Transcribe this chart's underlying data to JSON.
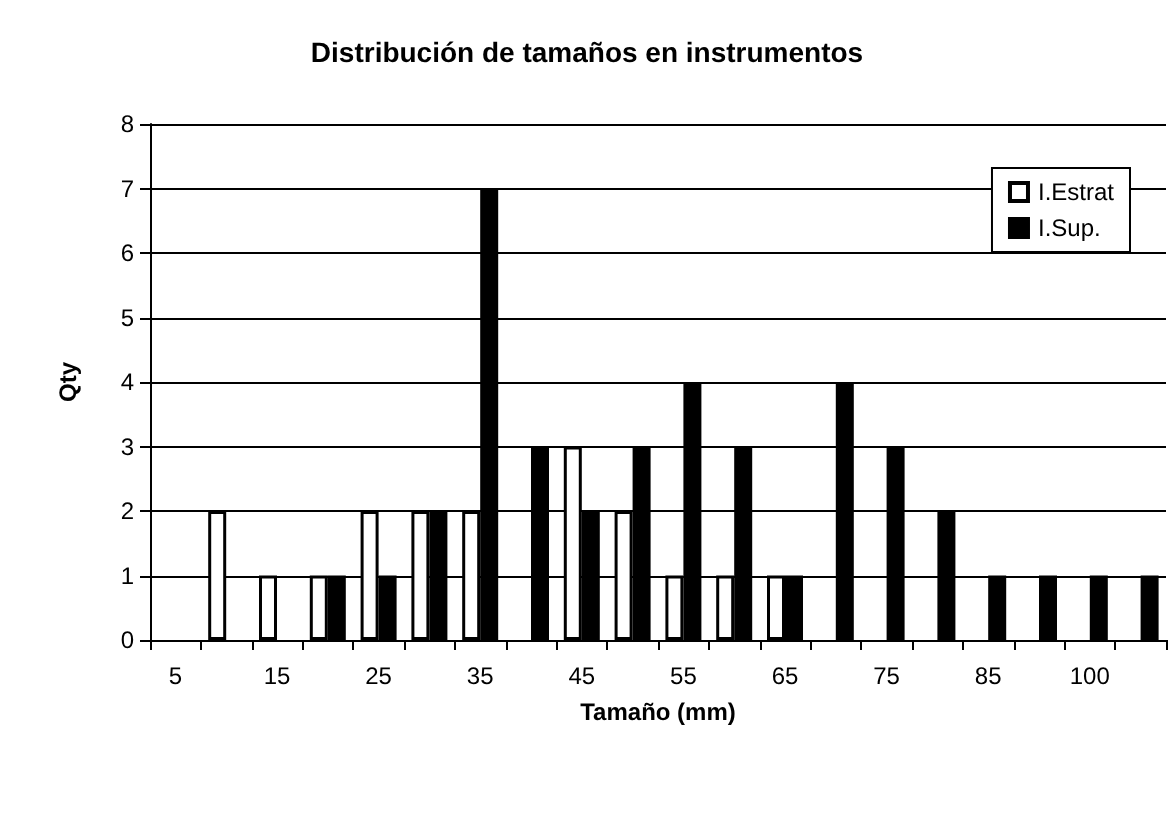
{
  "chart_data": {
    "type": "bar",
    "title": "Distribución de tamaños en instrumentos",
    "xlabel": "Tamaño (mm)",
    "ylabel": "Qty",
    "categories": [
      "5",
      null,
      "15",
      null,
      "25",
      null,
      "35",
      null,
      "45",
      null,
      "55",
      null,
      "65",
      null,
      "75",
      null,
      "85",
      null,
      "100",
      null
    ],
    "series": [
      {
        "name": "I.Estrat",
        "color": "#ffffff",
        "values": [
          null,
          2,
          1,
          1,
          2,
          2,
          2,
          null,
          3,
          2,
          1,
          1,
          1,
          null,
          null,
          null,
          null,
          null,
          null,
          null
        ]
      },
      {
        "name": "I.Sup.",
        "color": "#000000",
        "values": [
          null,
          null,
          null,
          1,
          1,
          2,
          7,
          3,
          2,
          3,
          4,
          3,
          1,
          4,
          3,
          2,
          1,
          1,
          1,
          1
        ]
      }
    ],
    "ylim": [
      0,
      8
    ],
    "yticks": [
      0,
      1,
      2,
      3,
      4,
      5,
      6,
      7,
      8
    ],
    "grid": "y",
    "legend": "top right"
  }
}
